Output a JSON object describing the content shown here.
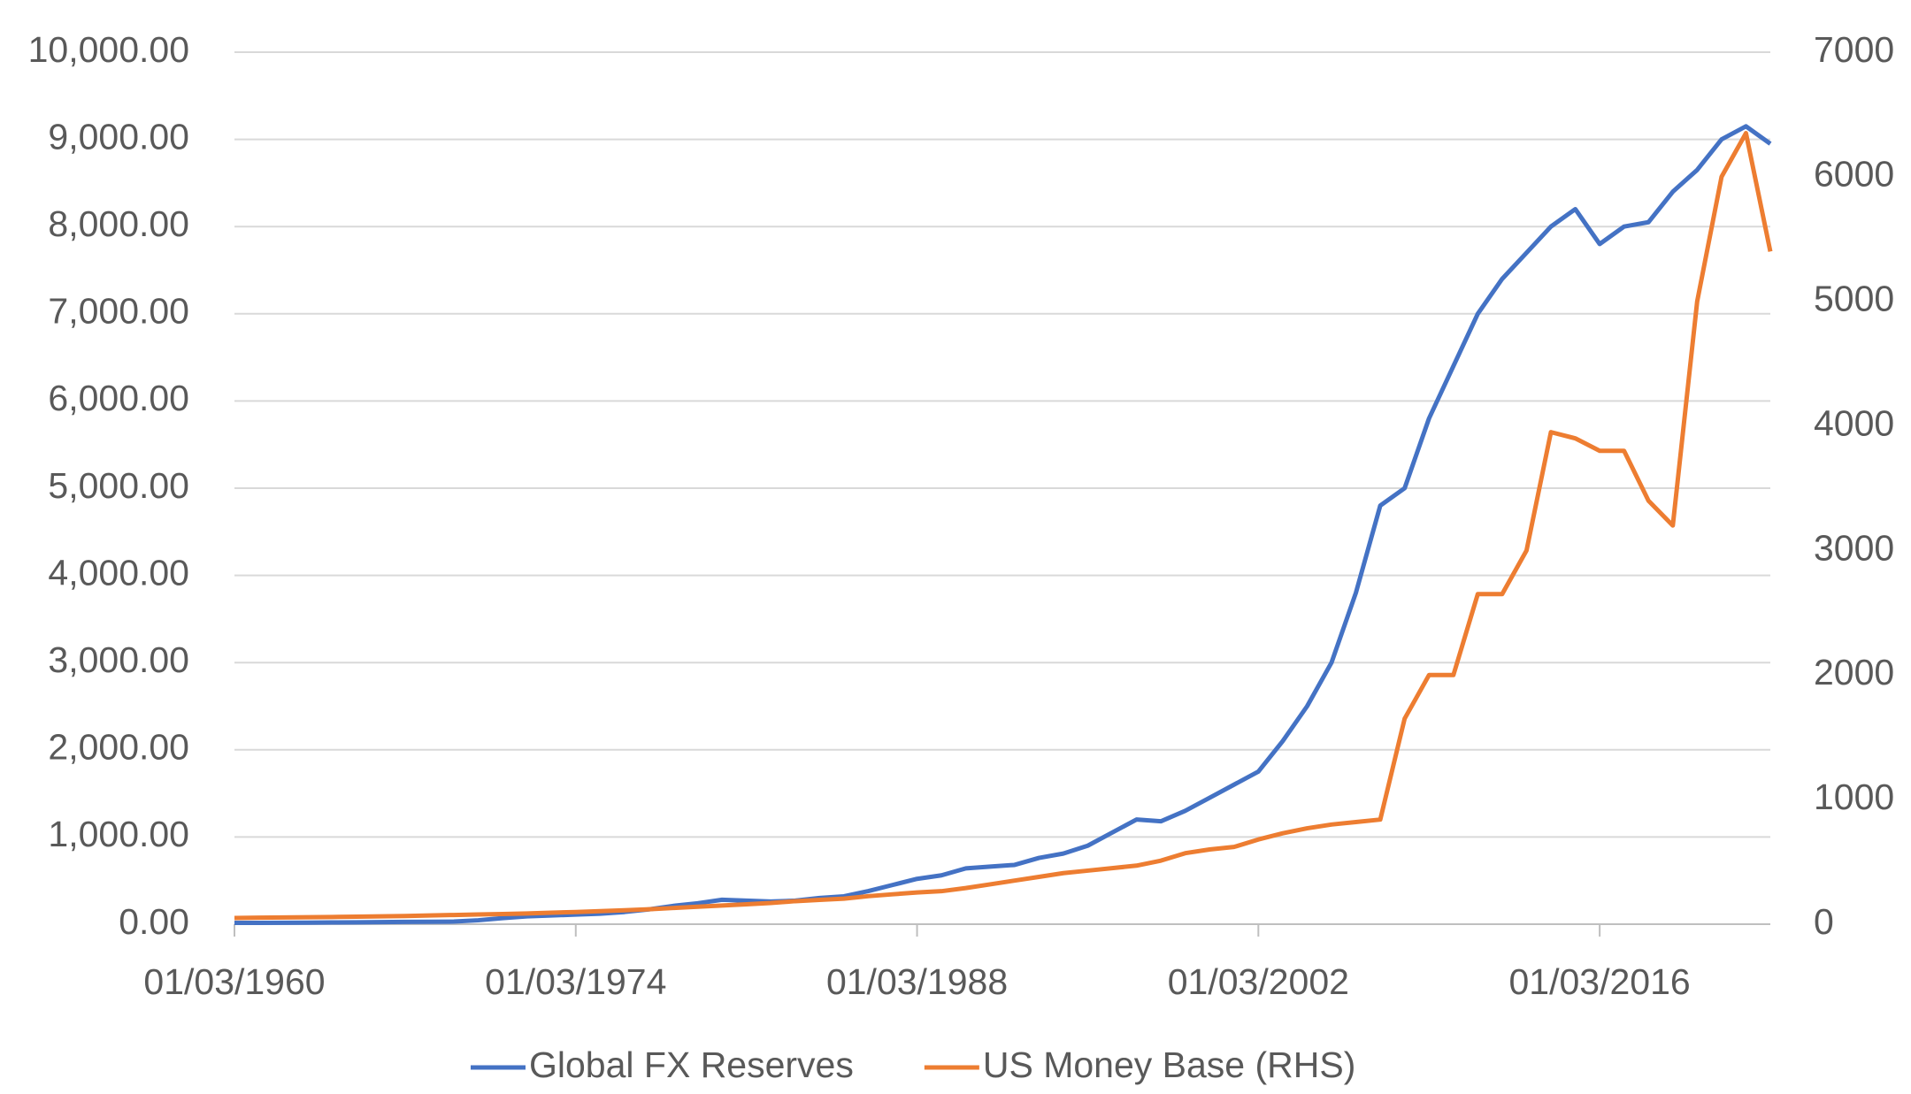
{
  "chart_data": {
    "type": "line",
    "categories": [
      "01/03/1960",
      null,
      null,
      null,
      null,
      null,
      null,
      null,
      null,
      null,
      null,
      null,
      null,
      null,
      "01/03/1974",
      null,
      null,
      null,
      null,
      null,
      null,
      null,
      null,
      null,
      null,
      null,
      null,
      null,
      "01/03/1988",
      null,
      null,
      null,
      null,
      null,
      null,
      null,
      null,
      null,
      null,
      null,
      null,
      null,
      "01/03/2002",
      null,
      null,
      null,
      null,
      null,
      null,
      null,
      null,
      null,
      null,
      null,
      null,
      null,
      "01/03/2016",
      null,
      null,
      null,
      null,
      null,
      null,
      null
    ],
    "series": [
      {
        "name": "Global FX Reserves",
        "color": "#4472c4",
        "values": [
          15,
          15,
          16,
          18,
          20,
          22,
          24,
          26,
          28,
          30,
          45,
          70,
          90,
          100,
          110,
          120,
          140,
          170,
          210,
          240,
          280,
          270,
          260,
          270,
          300,
          320,
          380,
          450,
          520,
          560,
          640,
          660,
          680,
          760,
          810,
          900,
          1050,
          1200,
          1180,
          1300,
          1450,
          1600,
          1750,
          2100,
          2500,
          3000,
          3800,
          4800,
          5000,
          5800,
          6400,
          7000,
          7400,
          7700,
          8000,
          8200,
          7800,
          8000,
          8050,
          8400,
          8650,
          9000,
          9150,
          8950
        ]
      },
      {
        "name": "US Money Base (RHS)",
        "color": "#ed7d31",
        "axis": "y2",
        "values": [
          50,
          52,
          54,
          56,
          58,
          60,
          63,
          66,
          70,
          74,
          78,
          82,
          86,
          92,
          98,
          105,
          112,
          120,
          130,
          140,
          150,
          160,
          170,
          185,
          195,
          205,
          225,
          240,
          255,
          265,
          290,
          320,
          350,
          380,
          410,
          430,
          450,
          470,
          510,
          570,
          600,
          620,
          680,
          730,
          770,
          800,
          820,
          840,
          1650,
          2000,
          2000,
          2650,
          2650,
          3000,
          3950,
          3900,
          3800,
          3800,
          3400,
          3200,
          5000,
          6000,
          6350,
          5400
        ]
      }
    ],
    "ylim": [
      0,
      10000
    ],
    "yticks": [
      {
        "value": 0,
        "label": "0.00"
      },
      {
        "value": 1000,
        "label": "1,000.00"
      },
      {
        "value": 2000,
        "label": "2,000.00"
      },
      {
        "value": 3000,
        "label": "3,000.00"
      },
      {
        "value": 4000,
        "label": "4,000.00"
      },
      {
        "value": 5000,
        "label": "5,000.00"
      },
      {
        "value": 6000,
        "label": "6,000.00"
      },
      {
        "value": 7000,
        "label": "7,000.00"
      },
      {
        "value": 8000,
        "label": "8,000.00"
      },
      {
        "value": 9000,
        "label": "9,000.00"
      },
      {
        "value": 10000,
        "label": "10,000.00"
      }
    ],
    "y2lim": [
      0,
      7000
    ],
    "y2ticks": [
      0,
      1000,
      2000,
      3000,
      4000,
      5000,
      6000,
      7000
    ],
    "grid": true,
    "legend": "bottom"
  }
}
